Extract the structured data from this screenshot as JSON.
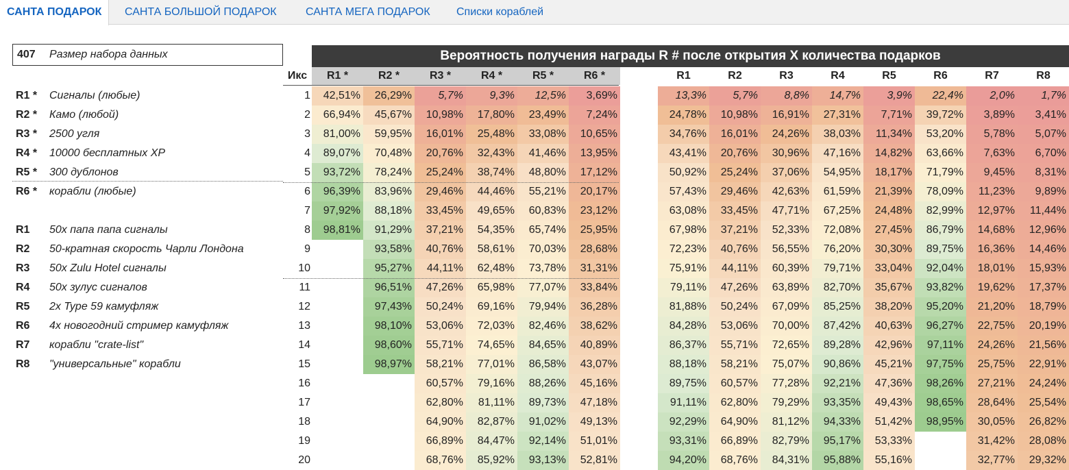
{
  "tabs": [
    {
      "label": "САНТА ПОДАРОК",
      "active": true
    },
    {
      "label": "САНТА БОЛЬШОЙ ПОДАРОК",
      "active": false
    },
    {
      "label": "САНТА МЕГА ПОДАРОК",
      "active": false
    },
    {
      "label": "Списки кораблей",
      "active": false
    }
  ],
  "dataset": {
    "value": "407",
    "label": "Размер набора данных"
  },
  "legend": [
    {
      "code": "R1 *",
      "desc": "Сигналы (любые)"
    },
    {
      "code": "R2 *",
      "desc": "Камо (любой)"
    },
    {
      "code": "R3 *",
      "desc": "2500 угля"
    },
    {
      "code": "R4 *",
      "desc": "10000 бесплатных XP"
    },
    {
      "code": "R5 *",
      "desc": "300 дублонов"
    },
    {
      "code": "R6 *",
      "desc": "корабли (любые)"
    },
    {
      "code": "R1",
      "desc": "50x папа папа сигналы"
    },
    {
      "code": "R2",
      "desc": "50-кратная скорость Чарли Лондона"
    },
    {
      "code": "R3",
      "desc": "50x Zulu Hotel сигналы"
    },
    {
      "code": "R4",
      "desc": "50x зулус сигналов"
    },
    {
      "code": "R5",
      "desc": "2x Type 59 камуфляж"
    },
    {
      "code": "R6",
      "desc": "4x новогодний стример камуфляж"
    },
    {
      "code": "R7",
      "desc": "корабли \"crate-list\""
    },
    {
      "code": "R8",
      "desc": "\"универсальные\" корабли"
    }
  ],
  "table": {
    "title": "Вероятность получения награды R # после открытия X количества подарков",
    "iks_label": "Икс",
    "columns_star": [
      "R1 *",
      "R2 *",
      "R3 *",
      "R4 *",
      "R5 *",
      "R6 *"
    ],
    "columns": [
      "R1",
      "R2",
      "R3",
      "R4",
      "R5",
      "R6",
      "R7",
      "R8"
    ],
    "rows": [
      {
        "x": "1",
        "star": [
          "42,51%",
          "26,29%",
          "5,7%",
          "9,3%",
          "12,5%",
          "3,69%"
        ],
        "plain": [
          "13,3%",
          "5,7%",
          "8,8%",
          "14,7%",
          "3,9%",
          "22,4%",
          "2,0%",
          "1,7%"
        ]
      },
      {
        "x": "2",
        "star": [
          "66,94%",
          "45,67%",
          "10,98%",
          "17,80%",
          "23,49%",
          "7,24%"
        ],
        "plain": [
          "24,78%",
          "10,98%",
          "16,91%",
          "27,31%",
          "7,71%",
          "39,72%",
          "3,89%",
          "3,41%"
        ]
      },
      {
        "x": "3",
        "star": [
          "81,00%",
          "59,95%",
          "16,01%",
          "25,48%",
          "33,08%",
          "10,65%"
        ],
        "plain": [
          "34,76%",
          "16,01%",
          "24,26%",
          "38,03%",
          "11,34%",
          "53,20%",
          "5,78%",
          "5,07%"
        ]
      },
      {
        "x": "4",
        "star": [
          "89,07%",
          "70,48%",
          "20,76%",
          "32,43%",
          "41,46%",
          "13,95%"
        ],
        "plain": [
          "43,41%",
          "20,76%",
          "30,96%",
          "47,16%",
          "14,82%",
          "63,66%",
          "7,63%",
          "6,70%"
        ]
      },
      {
        "x": "5",
        "star": [
          "93,72%",
          "78,24%",
          "25,24%",
          "38,74%",
          "48,80%",
          "17,12%"
        ],
        "plain": [
          "50,92%",
          "25,24%",
          "37,06%",
          "54,95%",
          "18,17%",
          "71,79%",
          "9,45%",
          "8,31%"
        ]
      },
      {
        "x": "6",
        "star": [
          "96,39%",
          "83,96%",
          "29,46%",
          "44,46%",
          "55,21%",
          "20,17%"
        ],
        "plain": [
          "57,43%",
          "29,46%",
          "42,63%",
          "61,59%",
          "21,39%",
          "78,09%",
          "11,23%",
          "9,89%"
        ]
      },
      {
        "x": "7",
        "star": [
          "97,92%",
          "88,18%",
          "33,45%",
          "49,65%",
          "60,83%",
          "23,12%"
        ],
        "plain": [
          "63,08%",
          "33,45%",
          "47,71%",
          "67,25%",
          "24,48%",
          "82,99%",
          "12,97%",
          "11,44%"
        ]
      },
      {
        "x": "8",
        "star": [
          "98,81%",
          "91,29%",
          "37,21%",
          "54,35%",
          "65,74%",
          "25,95%"
        ],
        "plain": [
          "67,98%",
          "37,21%",
          "52,33%",
          "72,08%",
          "27,45%",
          "86,79%",
          "14,68%",
          "12,96%"
        ]
      },
      {
        "x": "9",
        "star": [
          "",
          "93,58%",
          "40,76%",
          "58,61%",
          "70,03%",
          "28,68%"
        ],
        "plain": [
          "72,23%",
          "40,76%",
          "56,55%",
          "76,20%",
          "30,30%",
          "89,75%",
          "16,36%",
          "14,46%"
        ]
      },
      {
        "x": "10",
        "star": [
          "",
          "95,27%",
          "44,11%",
          "62,48%",
          "73,78%",
          "31,31%"
        ],
        "plain": [
          "75,91%",
          "44,11%",
          "60,39%",
          "79,71%",
          "33,04%",
          "92,04%",
          "18,01%",
          "15,93%"
        ]
      },
      {
        "x": "11",
        "star": [
          "",
          "96,51%",
          "47,26%",
          "65,98%",
          "77,07%",
          "33,84%"
        ],
        "plain": [
          "79,11%",
          "47,26%",
          "63,89%",
          "82,70%",
          "35,67%",
          "93,82%",
          "19,62%",
          "17,37%"
        ]
      },
      {
        "x": "12",
        "star": [
          "",
          "97,43%",
          "50,24%",
          "69,16%",
          "79,94%",
          "36,28%"
        ],
        "plain": [
          "81,88%",
          "50,24%",
          "67,09%",
          "85,25%",
          "38,20%",
          "95,20%",
          "21,20%",
          "18,79%"
        ]
      },
      {
        "x": "13",
        "star": [
          "",
          "98,10%",
          "53,06%",
          "72,03%",
          "82,46%",
          "38,62%"
        ],
        "plain": [
          "84,28%",
          "53,06%",
          "70,00%",
          "87,42%",
          "40,63%",
          "96,27%",
          "22,75%",
          "20,19%"
        ]
      },
      {
        "x": "14",
        "star": [
          "",
          "98,60%",
          "55,71%",
          "74,65%",
          "84,65%",
          "40,89%"
        ],
        "plain": [
          "86,37%",
          "55,71%",
          "72,65%",
          "89,28%",
          "42,96%",
          "97,11%",
          "24,26%",
          "21,56%"
        ]
      },
      {
        "x": "15",
        "star": [
          "",
          "98,97%",
          "58,21%",
          "77,01%",
          "86,58%",
          "43,07%"
        ],
        "plain": [
          "88,18%",
          "58,21%",
          "75,07%",
          "90,86%",
          "45,21%",
          "97,75%",
          "25,75%",
          "22,91%"
        ]
      },
      {
        "x": "16",
        "star": [
          "",
          "",
          "60,57%",
          "79,16%",
          "88,26%",
          "45,16%"
        ],
        "plain": [
          "89,75%",
          "60,57%",
          "77,28%",
          "92,21%",
          "47,36%",
          "98,26%",
          "27,21%",
          "24,24%"
        ]
      },
      {
        "x": "17",
        "star": [
          "",
          "",
          "62,80%",
          "81,11%",
          "89,73%",
          "47,18%"
        ],
        "plain": [
          "91,11%",
          "62,80%",
          "79,29%",
          "93,35%",
          "49,43%",
          "98,65%",
          "28,64%",
          "25,54%"
        ]
      },
      {
        "x": "18",
        "star": [
          "",
          "",
          "64,90%",
          "82,87%",
          "91,02%",
          "49,13%"
        ],
        "plain": [
          "92,29%",
          "64,90%",
          "81,12%",
          "94,33%",
          "51,42%",
          "98,95%",
          "30,05%",
          "26,82%"
        ]
      },
      {
        "x": "19",
        "star": [
          "",
          "",
          "66,89%",
          "84,47%",
          "92,14%",
          "51,01%"
        ],
        "plain": [
          "93,31%",
          "66,89%",
          "82,79%",
          "95,17%",
          "53,33%",
          "",
          "31,42%",
          "28,08%"
        ]
      },
      {
        "x": "20",
        "star": [
          "",
          "",
          "68,76%",
          "85,92%",
          "93,13%",
          "52,81%"
        ],
        "plain": [
          "94,20%",
          "68,76%",
          "84,31%",
          "95,88%",
          "55,16%",
          "",
          "32,77%",
          "29,32%"
        ]
      }
    ]
  }
}
